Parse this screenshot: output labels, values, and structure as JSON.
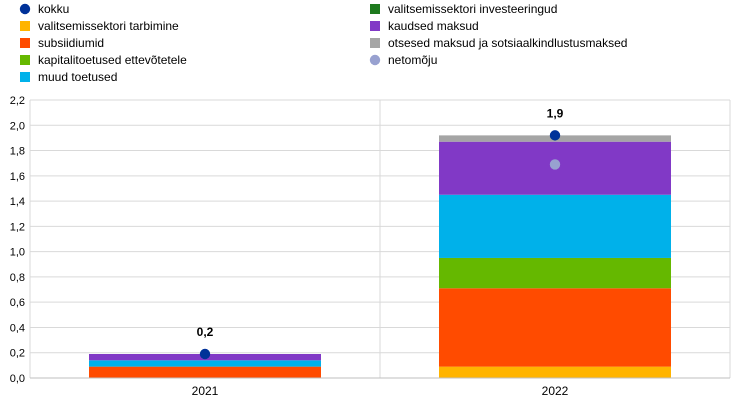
{
  "chart_data": {
    "type": "bar",
    "stacked": true,
    "categories": [
      "2021",
      "2022"
    ],
    "ylim": [
      0,
      2.2
    ],
    "yticks": [
      "0,0",
      "0,2",
      "0,4",
      "0,6",
      "0,8",
      "1,0",
      "1,2",
      "1,4",
      "1,6",
      "1,8",
      "2,0",
      "2,2"
    ],
    "grid": true,
    "legend_position": "top",
    "series": [
      {
        "name": "valitsemissektori investeeringud",
        "color": "#1e7a1e",
        "values": [
          0,
          0
        ]
      },
      {
        "name": "valitsemissektori tarbimine",
        "color": "#ffb400",
        "values": [
          0.0,
          0.09
        ]
      },
      {
        "name": "subsiidiumid",
        "color": "#ff4b00",
        "values": [
          0.09,
          0.62
        ]
      },
      {
        "name": "kapitalitoetused ettevõtetele",
        "color": "#65b800",
        "values": [
          0.0,
          0.24
        ]
      },
      {
        "name": "muud toetused",
        "color": "#00b1ea",
        "values": [
          0.05,
          0.5
        ]
      },
      {
        "name": "kaudsed maksud",
        "color": "#8139c6",
        "values": [
          0.05,
          0.42
        ]
      },
      {
        "name": "otsesed maksud ja sotsiaalkindlustusmaksed",
        "color": "#a5a5a5",
        "values": [
          0.0,
          0.05
        ]
      }
    ],
    "markers": [
      {
        "name": "kokku",
        "color": "#003299",
        "values": [
          0.19,
          1.92
        ]
      },
      {
        "name": "netomõju",
        "color": "#98a1d0",
        "values": [
          null,
          1.69
        ]
      }
    ],
    "data_labels": [
      "0,2",
      "1,9"
    ]
  },
  "legend": {
    "left": [
      {
        "label": "kokku",
        "marker": "dot",
        "color": "#003299"
      },
      {
        "label": "valitsemissektori tarbimine",
        "marker": "square",
        "color": "#ffb400"
      },
      {
        "label": "subsiidiumid",
        "marker": "square",
        "color": "#ff4b00"
      },
      {
        "label": "kapitalitoetused ettevõtetele",
        "marker": "square",
        "color": "#65b800"
      },
      {
        "label": "muud toetused",
        "marker": "square",
        "color": "#00b1ea"
      }
    ],
    "right": [
      {
        "label": "valitsemissektori investeeringud",
        "marker": "square",
        "color": "#1e7a1e"
      },
      {
        "label": "kaudsed maksud",
        "marker": "square",
        "color": "#8139c6"
      },
      {
        "label": "otsesed maksud ja sotsiaalkindlustusmaksed",
        "marker": "square",
        "color": "#a5a5a5"
      },
      {
        "label": "netomõju",
        "marker": "dot",
        "color": "#98a1d0"
      }
    ]
  }
}
